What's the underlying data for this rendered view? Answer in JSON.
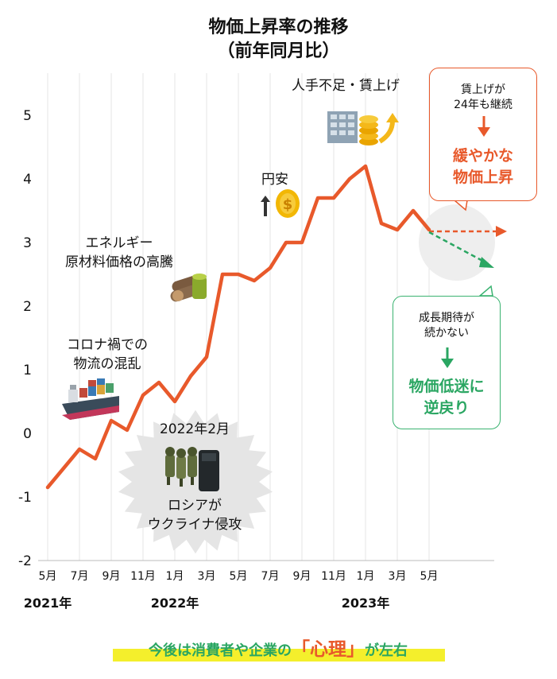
{
  "title": {
    "line1": "物価上昇率の推移",
    "line2": "（前年同月比）"
  },
  "chart_data": {
    "type": "line",
    "ylim": [
      -2,
      5.5
    ],
    "yticks": [
      "5",
      "4",
      "3",
      "2",
      "1",
      "0",
      "-1",
      "-2"
    ],
    "xtick_labels": [
      "5月",
      "7月",
      "9月",
      "11月",
      "1月",
      "3月",
      "5月",
      "7月",
      "9月",
      "11月",
      "1月",
      "3月",
      "5月"
    ],
    "year_labels": [
      "2021年",
      "2022年",
      "2023年"
    ],
    "x": [
      "2021-05",
      "2021-06",
      "2021-07",
      "2021-08",
      "2021-09",
      "2021-10",
      "2021-11",
      "2021-12",
      "2022-01",
      "2022-02",
      "2022-03",
      "2022-04",
      "2022-05",
      "2022-06",
      "2022-07",
      "2022-08",
      "2022-09",
      "2022-10",
      "2022-11",
      "2022-12",
      "2023-01",
      "2023-02",
      "2023-03",
      "2023-04",
      "2023-05"
    ],
    "values": [
      -0.85,
      -0.55,
      -0.25,
      -0.4,
      0.2,
      0.05,
      0.6,
      0.8,
      0.5,
      0.9,
      1.2,
      2.5,
      2.5,
      2.4,
      2.6,
      3.0,
      3.0,
      3.7,
      3.7,
      4.0,
      4.2,
      3.3,
      3.2,
      3.5,
      3.2
    ],
    "line_color": "#e8592b",
    "grid": "vertical"
  },
  "annotations": {
    "covid": [
      "コロナ禍での",
      "物流の混乱"
    ],
    "energy": [
      "エネルギー",
      "原材料価格の高騰"
    ],
    "yen": "円安",
    "labor": "人手不足・賃上げ",
    "russia": [
      "2022年2月",
      "ロシアが",
      "ウクライナ侵攻"
    ]
  },
  "callouts": {
    "orange": {
      "small": [
        "賃上げが",
        "24年も継続"
      ],
      "big": [
        "緩やかな",
        "物価上昇"
      ],
      "color": "#e8592b"
    },
    "green": {
      "small": [
        "成長期待が",
        "続かない"
      ],
      "big": [
        "物価低迷に",
        "逆戻り"
      ],
      "color": "#2aa662"
    }
  },
  "footer": {
    "pre": "今後は消費者や企業の",
    "keyword": "「心理」",
    "post": "が左右"
  }
}
